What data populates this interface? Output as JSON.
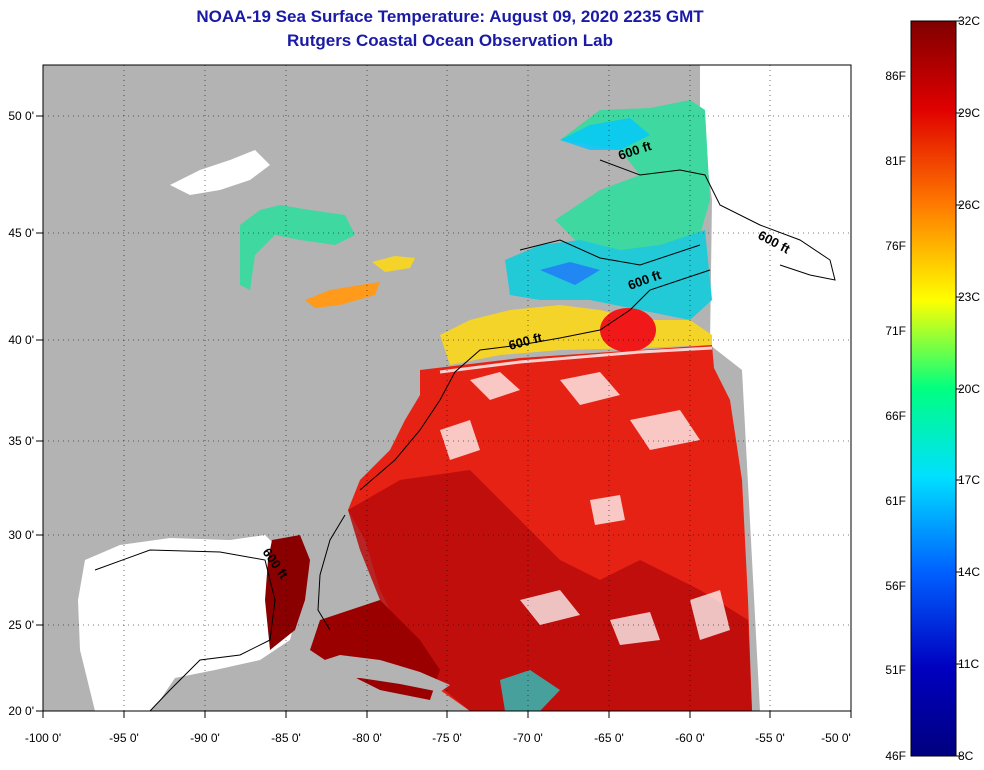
{
  "title": {
    "line1": "NOAA-19 Sea Surface Temperature:  August 09, 2020 2235 GMT",
    "line2": "Rutgers Coastal Ocean Observation Lab"
  },
  "axes": {
    "lon_labels": [
      "-100 0'",
      "-95 0'",
      "-90 0'",
      "-85 0'",
      "-80 0'",
      "-75 0'",
      "-70 0'",
      "-65 0'",
      "-60 0'",
      "-55 0'",
      "-50 0'"
    ],
    "lat_labels": [
      "50 0'",
      "45 0'",
      "40 0'",
      "35 0'",
      "30 0'",
      "25 0'",
      "20 0'"
    ],
    "lon_range": [
      -100,
      -50
    ],
    "lat_range": [
      20,
      52
    ]
  },
  "contours": {
    "depth_label": "600 ft",
    "count": 5
  },
  "colorbar": {
    "celsius_labels": [
      "32C",
      "29C",
      "26C",
      "23C",
      "20C",
      "17C",
      "14C",
      "11C",
      "8C"
    ],
    "fahrenheit_labels": [
      "86F",
      "81F",
      "76F",
      "71F",
      "66F",
      "61F",
      "56F",
      "51F",
      "46F"
    ],
    "range_c": [
      8,
      32
    ],
    "colors": [
      "#7f0000",
      "#e00000",
      "#ff7a00",
      "#ffff00",
      "#00ff80",
      "#00e0ff",
      "#0060ff",
      "#0000c0",
      "#00007f"
    ]
  },
  "colors": {
    "land": "#b3b3b3",
    "no_data": "#ffffff",
    "title": "#1a1aa6"
  }
}
